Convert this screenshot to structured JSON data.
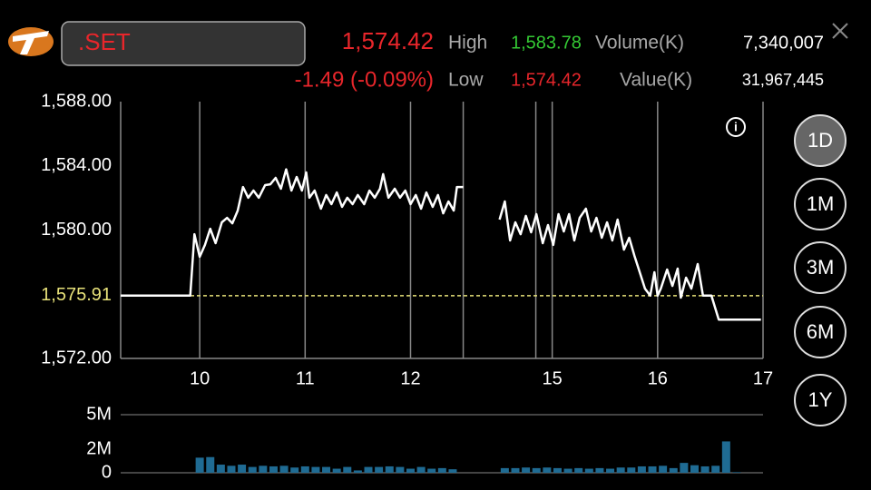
{
  "header": {
    "symbol": ".SET",
    "last": "1,574.42",
    "change": "-1.49 (-0.09%)",
    "high_label": "High",
    "high": "1,583.78",
    "volume_label": "Volume(K)",
    "volume": "7,340,007",
    "low_label": "Low",
    "low": "1,574.42",
    "value_label": "Value(K)",
    "value": "31,967,445"
  },
  "range_buttons": [
    "1D",
    "1M",
    "3M",
    "6M",
    "1Y"
  ],
  "chart_data": [
    {
      "type": "line",
      "color": "#ffffff",
      "x": [
        9.25,
        9.91,
        9.95,
        10.0,
        10.05,
        10.1,
        10.15,
        10.21,
        10.26,
        10.31,
        10.36,
        10.41,
        10.46,
        10.51,
        10.56,
        10.62,
        10.67,
        10.72,
        10.77,
        10.82,
        10.87,
        10.92,
        10.97,
        11.01,
        11.04,
        11.09,
        11.15,
        11.2,
        11.25,
        11.3,
        11.35,
        11.4,
        11.45,
        11.5,
        11.56,
        11.61,
        11.66,
        11.71,
        11.74,
        11.79,
        11.85,
        11.9,
        11.95,
        12.0,
        12.05,
        12.1,
        12.15,
        12.21,
        12.26,
        12.31,
        12.36,
        12.41,
        12.44,
        12.5,
        13.5,
        14.5,
        14.55,
        14.6,
        14.65,
        14.7,
        14.75,
        14.8,
        14.85,
        14.91,
        14.96,
        15.01,
        15.06,
        15.11,
        15.16,
        15.21,
        15.26,
        15.32,
        15.37,
        15.42,
        15.47,
        15.52,
        15.57,
        15.62,
        15.68,
        15.73,
        15.78,
        15.83,
        15.88,
        15.93,
        15.97,
        16.0,
        16.03,
        16.09,
        16.14,
        16.19,
        16.22,
        16.27,
        16.32,
        16.38,
        16.43,
        16.46,
        16.51,
        16.58,
        16.63,
        16.98
      ],
      "values": [
        1575.91,
        1575.91,
        1579.74,
        1578.33,
        1579.07,
        1580.08,
        1579.18,
        1580.48,
        1580.76,
        1580.42,
        1581.21,
        1582.68,
        1582.01,
        1582.46,
        1582.01,
        1582.8,
        1582.85,
        1583.25,
        1582.57,
        1583.78,
        1582.46,
        1583.31,
        1582.46,
        1583.59,
        1582.01,
        1582.46,
        1581.33,
        1582.18,
        1581.61,
        1582.34,
        1581.44,
        1582.01,
        1581.61,
        1582.18,
        1581.61,
        1582.46,
        1582.01,
        1582.57,
        1583.48,
        1582.01,
        1582.57,
        1582.01,
        1582.46,
        1581.61,
        1582.18,
        1581.33,
        1582.34,
        1581.44,
        1582.18,
        1581.04,
        1581.78,
        1581.21,
        1582.68,
        1582.68,
        null,
        1580.65,
        1581.78,
        1579.35,
        1580.48,
        1579.74,
        1580.88,
        1579.86,
        1580.99,
        1579.18,
        1580.31,
        1579.07,
        1580.99,
        1579.91,
        1580.99,
        1579.35,
        1580.76,
        1581.33,
        1579.91,
        1580.76,
        1579.52,
        1580.48,
        1579.35,
        1580.65,
        1578.78,
        1579.52,
        1578.39,
        1577.37,
        1576.35,
        1575.91,
        1577.37,
        1575.91,
        1576.35,
        1577.54,
        1576.52,
        1577.6,
        1575.79,
        1577.03,
        1576.35,
        1577.88,
        1575.91,
        1575.91,
        1575.91,
        1574.42,
        1574.42,
        1574.42
      ],
      "xlim": [
        9.25,
        17
      ],
      "xbreak": [
        12.5,
        14.5
      ],
      "xticks": [
        10,
        11,
        12,
        15,
        16,
        17
      ],
      "ylim": [
        1572,
        1588
      ],
      "yticks": [
        {
          "value": 1572,
          "label": "1,572.00"
        },
        {
          "value": 1580,
          "label": "1,580.00"
        },
        {
          "value": 1584,
          "label": "1,584.00"
        },
        {
          "value": 1588,
          "label": "1,588.00"
        }
      ],
      "reference": {
        "value": 1575.91,
        "label": "1,575.91",
        "color": "#e8e27a"
      }
    },
    {
      "type": "bar",
      "color": "#1f6b93",
      "x": [
        10.0,
        10.1,
        10.2,
        10.3,
        10.4,
        10.5,
        10.6,
        10.7,
        10.8,
        10.9,
        11.0,
        11.1,
        11.2,
        11.3,
        11.4,
        11.5,
        11.6,
        11.7,
        11.8,
        11.9,
        12.0,
        12.1,
        12.2,
        12.3,
        12.4,
        14.55,
        14.65,
        14.75,
        14.85,
        14.95,
        15.05,
        15.15,
        15.25,
        15.35,
        15.45,
        15.55,
        15.65,
        15.75,
        15.85,
        15.95,
        16.05,
        16.15,
        16.25,
        16.35,
        16.45,
        16.55,
        16.65,
        16.75
      ],
      "values": [
        1300000,
        1350000,
        700000,
        600000,
        700000,
        500000,
        600000,
        550000,
        600000,
        450000,
        550000,
        500000,
        500000,
        350000,
        500000,
        200000,
        500000,
        500000,
        550000,
        500000,
        350000,
        500000,
        350000,
        400000,
        300000,
        400000,
        400000,
        450000,
        400000,
        450000,
        400000,
        350000,
        400000,
        350000,
        400000,
        350000,
        450000,
        450000,
        550000,
        550000,
        600000,
        400000,
        850000,
        650000,
        550000,
        600000,
        2700000,
        50000
      ],
      "xlim": [
        9.25,
        17
      ],
      "xbreak": [
        12.5,
        14.5
      ],
      "ylim": [
        0,
        5000000
      ],
      "yticks": [
        0,
        {
          "value": 2000000,
          "label": "2M"
        },
        {
          "value": 5000000,
          "label": "5M"
        }
      ]
    }
  ]
}
